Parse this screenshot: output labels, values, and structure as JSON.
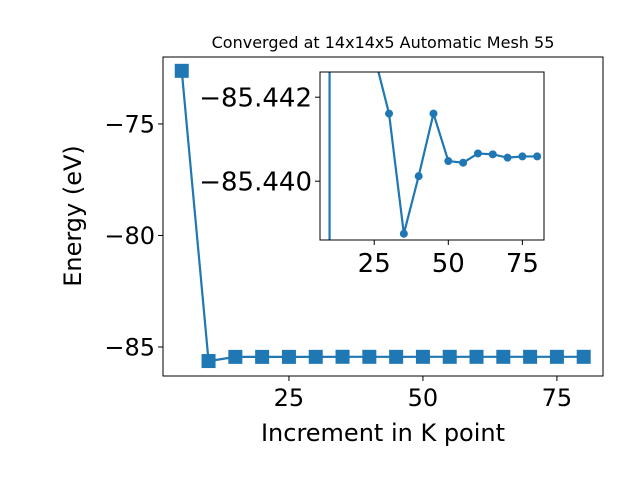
{
  "chart_data": [
    {
      "type": "line",
      "title": "Converged at 14x14x5 Automatic Mesh 55",
      "xlabel": "Increment in K point",
      "ylabel": "Energy (eV)",
      "x": [
        5,
        10,
        15,
        20,
        25,
        30,
        35,
        40,
        45,
        50,
        55,
        60,
        65,
        70,
        75,
        80
      ],
      "y": [
        -72.62,
        -85.63,
        -85.4435,
        -85.4432,
        -85.443,
        -85.44161,
        -85.43875,
        -85.44012,
        -85.44161,
        -85.44048,
        -85.44044,
        -85.44066,
        -85.44064,
        -85.44056,
        -85.44059,
        -85.44059
      ],
      "xlim": [
        1.5,
        83.6
      ],
      "ylim": [
        -86.3,
        -72.0
      ],
      "xticks": [
        25,
        50,
        75
      ],
      "yticks": [
        -75,
        -80,
        -85
      ],
      "xtick_labels": [
        "25",
        "50",
        "75"
      ],
      "ytick_labels": [
        "−75",
        "−80",
        "−85"
      ],
      "marker": "square",
      "color": "#1f77b4",
      "grid": false
    },
    {
      "type": "line",
      "title": "",
      "x": [
        5,
        10,
        15,
        20,
        25,
        30,
        35,
        40,
        45,
        50,
        55,
        60,
        65,
        70,
        75,
        80
      ],
      "y": [
        -72.62,
        -85.63,
        -85.4435,
        -85.4432,
        -85.443,
        -85.44161,
        -85.43875,
        -85.44012,
        -85.44161,
        -85.44048,
        -85.44044,
        -85.44066,
        -85.44064,
        -85.44056,
        -85.44059,
        -85.44059
      ],
      "xlim": [
        6.7,
        82.3
      ],
      "ylim_top_to_bottom": [
        -85.4426,
        -85.4386
      ],
      "xticks": [
        25,
        50,
        75
      ],
      "yticks": [
        -85.442,
        -85.44
      ],
      "xtick_labels": [
        "25",
        "50",
        "75"
      ],
      "ytick_labels": [
        "−85.442",
        "−85.440"
      ],
      "marker": "circle",
      "color": "#1f77b4",
      "grid": false
    }
  ]
}
